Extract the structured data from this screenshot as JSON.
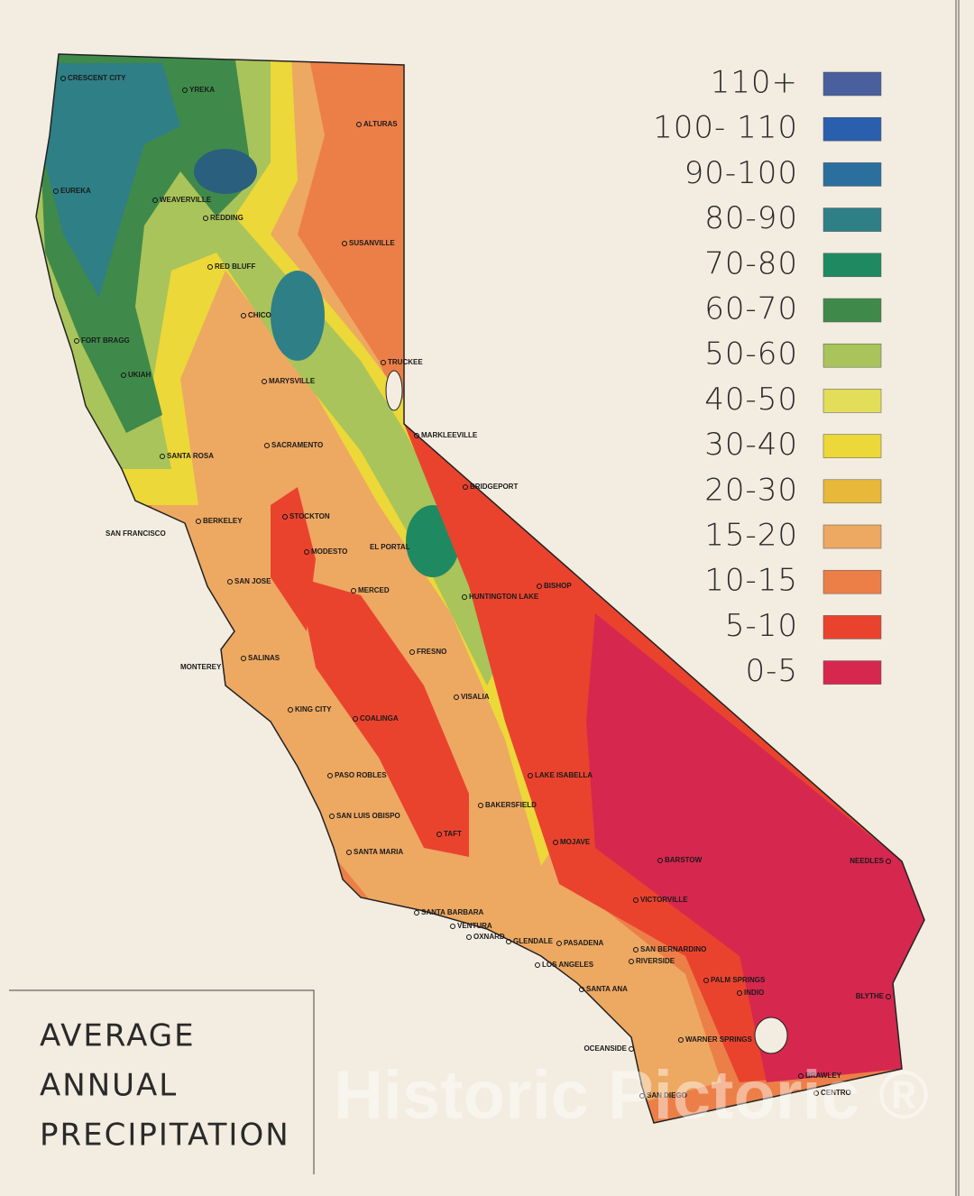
{
  "title_lines": [
    "AVERAGE",
    "ANNUAL",
    "PRECIPITATION"
  ],
  "legend": [
    {
      "label": "110+",
      "color": "#4a5f9e"
    },
    {
      "label": "100- 110",
      "color": "#2a5fae"
    },
    {
      "label": "90-100",
      "color": "#2a6f9e"
    },
    {
      "label": "80-90",
      "color": "#2f7f86"
    },
    {
      "label": "70-80",
      "color": "#1f8a62"
    },
    {
      "label": "60-70",
      "color": "#3f8a4a"
    },
    {
      "label": "50-60",
      "color": "#a9c45a"
    },
    {
      "label": "40-50",
      "color": "#e2de5a"
    },
    {
      "label": "30-40",
      "color": "#ecd838"
    },
    {
      "label": "20-30",
      "color": "#e8b83a"
    },
    {
      "label": "15-20",
      "color": "#eda862"
    },
    {
      "label": "10-15",
      "color": "#ec7f48"
    },
    {
      "label": "5-10",
      "color": "#e9432e"
    },
    {
      "label": "0-5",
      "color": "#d6274f"
    }
  ],
  "cities": [
    "CRESCENT CITY",
    "YREKA",
    "ALTURAS",
    "EUREKA",
    "WEAVERVILLE",
    "REDDING",
    "SUSANVILLE",
    "RED BLUFF",
    "CHICO",
    "FORT BRAGG",
    "UKIAH",
    "TRUCKEE",
    "MARYSVILLE",
    "MARKLEEVILLE",
    "SACRAMENTO",
    "SANTA ROSA",
    "BRIDGEPORT",
    "SAN FRANCISCO",
    "BERKELEY",
    "STOCKTON",
    "MODESTO",
    "EL PORTAL",
    "BISHOP",
    "SAN JOSE",
    "MERCED",
    "HUNTINGTON LAKE",
    "FRESNO",
    "MONTEREY",
    "SALINAS",
    "VISALIA",
    "KING CITY",
    "COALINGA",
    "PASO ROBLES",
    "LAKE ISABELLA",
    "BAKERSFIELD",
    "SAN LUIS OBISPO",
    "TAFT",
    "MOJAVE",
    "SANTA MARIA",
    "BARSTOW",
    "NEEDLES",
    "VICTORVILLE",
    "SANTA BARBARA",
    "VENTURA",
    "OXNARD",
    "GLENDALE",
    "PASADENA",
    "SAN BERNARDINO",
    "LOS ANGELES",
    "RIVERSIDE",
    "PALM SPRINGS",
    "INDIO",
    "SANTA ANA",
    "BLYTHE",
    "WARNER SPRINGS",
    "OCEANSIDE",
    "BRAWLEY",
    "SAN DIEGO",
    "CENTRO"
  ],
  "watermark": "Historic Pictoric ®"
}
